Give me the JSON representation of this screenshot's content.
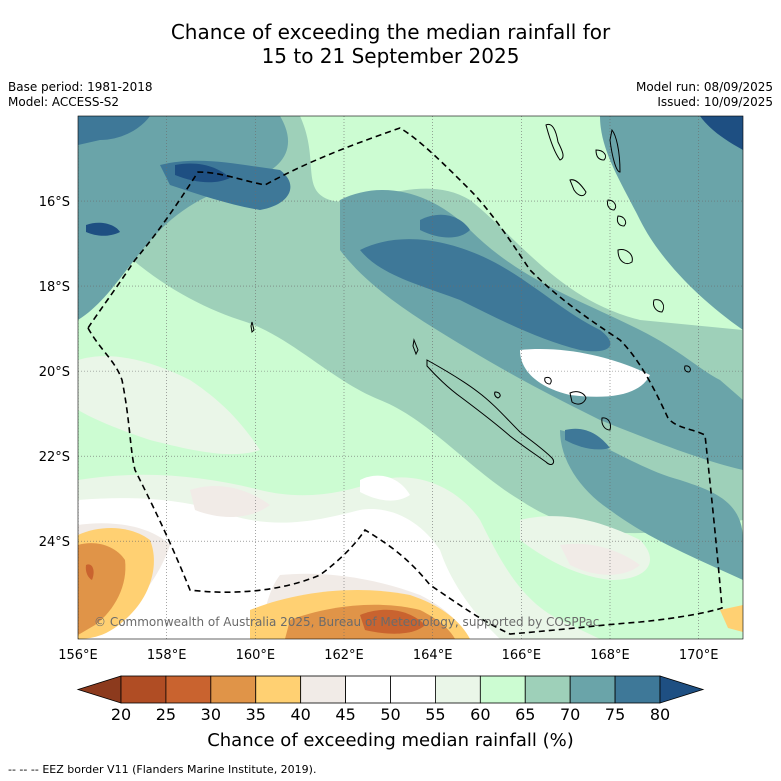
{
  "title": {
    "line1": "Chance of exceeding the median rainfall for",
    "line2": "15 to 21 September 2025"
  },
  "meta_left": {
    "base_period": "Base period: 1981-2018",
    "model": "Model: ACCESS-S2"
  },
  "meta_right": {
    "model_run": "Model run: 08/09/2025",
    "issued": "Issued: 10/09/2025"
  },
  "map": {
    "lon_range": [
      156,
      171
    ],
    "lat_range": [
      -26.3,
      -14.0
    ],
    "lon_ticks": [
      "156°E",
      "158°E",
      "160°E",
      "162°E",
      "164°E",
      "166°E",
      "168°E",
      "170°E"
    ],
    "lat_ticks": [
      "16°S",
      "18°S",
      "20°S",
      "22°S",
      "24°S"
    ],
    "copyright": "© Commonwealth of Australia 2025, Bureau of Meteorology, supported by COSPPac"
  },
  "colorbar": {
    "labels": [
      "20",
      "25",
      "30",
      "35",
      "40",
      "45",
      "50",
      "55",
      "60",
      "65",
      "70",
      "75",
      "80"
    ],
    "colors": [
      "#8c3a1d",
      "#b04d24",
      "#c9632f",
      "#e09448",
      "#ffd072",
      "#f1ebe7",
      "#ffffff",
      "#ffffff",
      "#eaf6e8",
      "#ccfcd2",
      "#9ed0b9",
      "#6aa4a9",
      "#3e7898",
      "#1e4f82"
    ],
    "title": "Chance of exceeding median rainfall (%)"
  },
  "footer": {
    "legend_symbol": "-- -- --",
    "legend_text": "EEZ border V11 (Flanders Marine Institute, 2019)."
  }
}
